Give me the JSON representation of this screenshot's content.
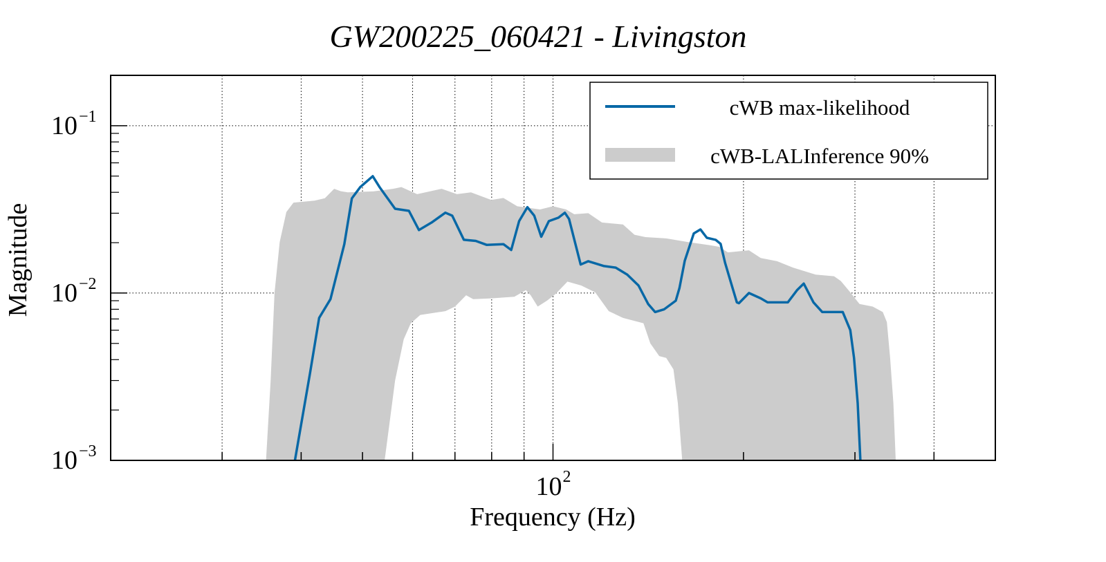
{
  "chart_data": {
    "type": "line",
    "title": "GW200225_060421 - Livingston",
    "xlabel": "Frequency (Hz)",
    "ylabel": "Magnitude",
    "xscale": "log",
    "yscale": "log",
    "xlim": [
      20,
      500
    ],
    "ylim": [
      0.001,
      0.2
    ],
    "grid": true,
    "legend_position": "top-right",
    "x_major_ticks": [
      {
        "value": 100,
        "base": "10",
        "exp": "2"
      }
    ],
    "x_minor_grid": [
      30,
      40,
      50,
      60,
      70,
      80,
      90,
      200,
      300,
      400
    ],
    "y_major_ticks": [
      {
        "value": 0.1,
        "base": "10",
        "exp": "−1"
      },
      {
        "value": 0.01,
        "base": "10",
        "exp": "−2"
      },
      {
        "value": 0.001,
        "base": "10",
        "exp": "−3"
      }
    ],
    "series": [
      {
        "name": "cWB max-likelihood",
        "kind": "line",
        "color": "#0868a6",
        "points": [
          [
            39.1,
            0.001
          ],
          [
            41.3,
            0.0033
          ],
          [
            42.7,
            0.0071
          ],
          [
            44.5,
            0.0092
          ],
          [
            46.8,
            0.0196
          ],
          [
            48.1,
            0.0368
          ],
          [
            49.6,
            0.043
          ],
          [
            51.9,
            0.0499
          ],
          [
            53.2,
            0.043
          ],
          [
            56.3,
            0.0319
          ],
          [
            59.2,
            0.031
          ],
          [
            61.4,
            0.0238
          ],
          [
            64.3,
            0.0264
          ],
          [
            67.6,
            0.0302
          ],
          [
            69.3,
            0.029
          ],
          [
            72.3,
            0.0208
          ],
          [
            75.5,
            0.0205
          ],
          [
            78.6,
            0.0194
          ],
          [
            83.5,
            0.0196
          ],
          [
            85.9,
            0.0181
          ],
          [
            88.4,
            0.0269
          ],
          [
            91.1,
            0.0326
          ],
          [
            93.4,
            0.029
          ],
          [
            95.8,
            0.0217
          ],
          [
            98.5,
            0.0269
          ],
          [
            102,
            0.0282
          ],
          [
            104.4,
            0.0302
          ],
          [
            106,
            0.0277
          ],
          [
            110.6,
            0.0148
          ],
          [
            113.7,
            0.0155
          ],
          [
            120.4,
            0.0145
          ],
          [
            125.6,
            0.0142
          ],
          [
            131,
            0.0129
          ],
          [
            136.5,
            0.0111
          ],
          [
            141.4,
            0.0086
          ],
          [
            145,
            0.0077
          ],
          [
            149.9,
            0.008
          ],
          [
            156.3,
            0.009
          ],
          [
            158.4,
            0.0107
          ],
          [
            161.5,
            0.0156
          ],
          [
            166.9,
            0.0227
          ],
          [
            171,
            0.024
          ],
          [
            175,
            0.0214
          ],
          [
            180.7,
            0.0208
          ],
          [
            184,
            0.0197
          ],
          [
            187,
            0.0152
          ],
          [
            191.3,
            0.0114
          ],
          [
            195.2,
            0.0088
          ],
          [
            196.7,
            0.0087
          ],
          [
            204,
            0.01
          ],
          [
            213,
            0.0093
          ],
          [
            218.3,
            0.0088
          ],
          [
            235,
            0.0088
          ],
          [
            243,
            0.0104
          ],
          [
            249,
            0.0114
          ],
          [
            258,
            0.0088
          ],
          [
            266.4,
            0.0077
          ],
          [
            287,
            0.0077
          ],
          [
            295,
            0.006
          ],
          [
            299,
            0.0041
          ],
          [
            303,
            0.0022
          ],
          [
            306,
            0.001
          ]
        ]
      },
      {
        "name": "cWB-LALInference 90%",
        "kind": "band",
        "color": "#cccccc",
        "upper": [
          [
            35.2,
            0.001
          ],
          [
            35.8,
            0.003
          ],
          [
            36.3,
            0.01
          ],
          [
            37.0,
            0.0202
          ],
          [
            37.9,
            0.0305
          ],
          [
            38.9,
            0.0347
          ],
          [
            42,
            0.0357
          ],
          [
            43.6,
            0.0369
          ],
          [
            45.1,
            0.042
          ],
          [
            46.2,
            0.0406
          ],
          [
            47.4,
            0.04
          ],
          [
            52,
            0.0405
          ],
          [
            55.9,
            0.042
          ],
          [
            57.6,
            0.043
          ],
          [
            61,
            0.039
          ],
          [
            66.7,
            0.042
          ],
          [
            70.5,
            0.039
          ],
          [
            74.2,
            0.04
          ],
          [
            79.9,
            0.036
          ],
          [
            83.5,
            0.037
          ],
          [
            87.8,
            0.033
          ],
          [
            95.4,
            0.0316
          ],
          [
            100,
            0.033
          ],
          [
            104.9,
            0.0316
          ],
          [
            108,
            0.0296
          ],
          [
            113.7,
            0.03
          ],
          [
            119.5,
            0.0264
          ],
          [
            129,
            0.0257
          ],
          [
            134.5,
            0.0223
          ],
          [
            140,
            0.0216
          ],
          [
            151,
            0.0212
          ],
          [
            163,
            0.0202
          ],
          [
            177,
            0.0193
          ],
          [
            183,
            0.0189
          ],
          [
            189,
            0.0175
          ],
          [
            204,
            0.018
          ],
          [
            213,
            0.0162
          ],
          [
            226,
            0.0155
          ],
          [
            239.5,
            0.0142
          ],
          [
            260,
            0.0129
          ],
          [
            278,
            0.0126
          ],
          [
            285,
            0.0118
          ],
          [
            295,
            0.0101
          ],
          [
            305,
            0.0086
          ],
          [
            320,
            0.0083
          ],
          [
            332,
            0.0077
          ],
          [
            337,
            0.0067
          ],
          [
            341,
            0.0041
          ],
          [
            345,
            0.0022
          ],
          [
            348,
            0.001
          ]
        ],
        "lower": [
          [
            54.2,
            0.001
          ],
          [
            56.3,
            0.003
          ],
          [
            58.1,
            0.0053
          ],
          [
            59.6,
            0.0066
          ],
          [
            61.7,
            0.0074
          ],
          [
            67.6,
            0.0078
          ],
          [
            70,
            0.0083
          ],
          [
            72.9,
            0.0097
          ],
          [
            74.8,
            0.0092
          ],
          [
            79.9,
            0.0093
          ],
          [
            86.9,
            0.0095
          ],
          [
            90.6,
            0.0104
          ],
          [
            92.2,
            0.0097
          ],
          [
            94.6,
            0.0083
          ],
          [
            97.8,
            0.009
          ],
          [
            101,
            0.0099
          ],
          [
            105.4,
            0.0117
          ],
          [
            110.8,
            0.0111
          ],
          [
            116.6,
            0.0101
          ],
          [
            122.5,
            0.0078
          ],
          [
            129,
            0.0071
          ],
          [
            139,
            0.0066
          ],
          [
            142.5,
            0.005
          ],
          [
            147.2,
            0.0042
          ],
          [
            151,
            0.0041
          ],
          [
            155,
            0.0035
          ],
          [
            157.5,
            0.0022
          ],
          [
            160,
            0.001
          ]
        ]
      }
    ]
  },
  "legend": {
    "items": [
      {
        "label": "cWB max-likelihood",
        "color": "#0868a6"
      },
      {
        "label": "cWB-LALInference 90%",
        "color": "#cccccc"
      }
    ]
  }
}
